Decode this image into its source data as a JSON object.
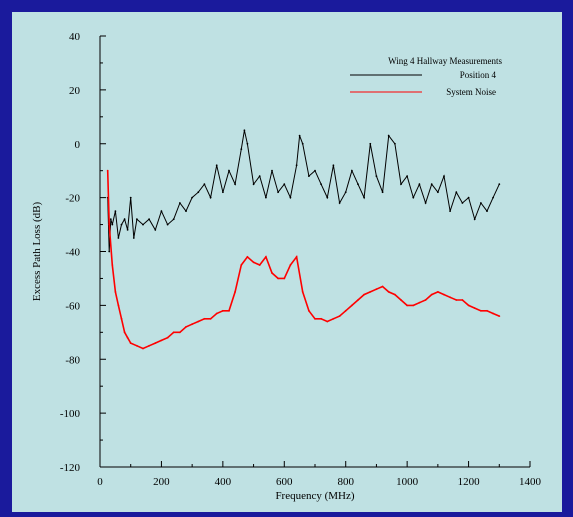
{
  "chart_data": {
    "type": "line",
    "title": "",
    "xlabel": "Frequency (MHz)",
    "ylabel": "Excess Path Loss (dB)",
    "xlim": [
      0,
      1400
    ],
    "ylim": [
      -120,
      40
    ],
    "xticks": [
      0,
      200,
      400,
      600,
      800,
      1000,
      1200,
      1400
    ],
    "yticks": [
      40,
      20,
      0,
      -20,
      -40,
      -60,
      -80,
      -100,
      -120
    ],
    "grid": false,
    "legend": {
      "title": "Wing 4 Hallway Measurements",
      "placement": "top-right"
    },
    "series": [
      {
        "name": "Position 4",
        "color": "#000000",
        "x": [
          25,
          30,
          35,
          40,
          50,
          60,
          70,
          80,
          90,
          100,
          110,
          120,
          140,
          160,
          180,
          200,
          220,
          240,
          260,
          280,
          300,
          320,
          340,
          360,
          380,
          400,
          420,
          440,
          460,
          470,
          480,
          500,
          520,
          540,
          560,
          580,
          600,
          620,
          640,
          650,
          660,
          680,
          700,
          720,
          740,
          760,
          780,
          800,
          820,
          840,
          860,
          880,
          900,
          920,
          940,
          960,
          980,
          1000,
          1020,
          1040,
          1060,
          1080,
          1100,
          1120,
          1140,
          1160,
          1180,
          1200,
          1220,
          1240,
          1260,
          1280,
          1300
        ],
        "y": [
          -20,
          -40,
          -28,
          -30,
          -25,
          -35,
          -30,
          -28,
          -32,
          -20,
          -35,
          -28,
          -30,
          -28,
          -32,
          -25,
          -30,
          -28,
          -22,
          -25,
          -20,
          -18,
          -15,
          -20,
          -8,
          -18,
          -10,
          -15,
          -2,
          5,
          0,
          -15,
          -12,
          -20,
          -10,
          -18,
          -15,
          -20,
          -8,
          3,
          0,
          -12,
          -10,
          -15,
          -20,
          -8,
          -22,
          -18,
          -10,
          -15,
          -20,
          0,
          -12,
          -18,
          3,
          0,
          -15,
          -12,
          -20,
          -15,
          -22,
          -15,
          -18,
          -12,
          -25,
          -18,
          -22,
          -20,
          -28,
          -22,
          -25,
          -20,
          -15
        ]
      },
      {
        "name": "System Noise",
        "color": "#ff0000",
        "x": [
          25,
          30,
          40,
          50,
          60,
          70,
          80,
          90,
          100,
          120,
          140,
          160,
          180,
          200,
          220,
          240,
          260,
          280,
          300,
          320,
          340,
          360,
          380,
          400,
          420,
          440,
          460,
          480,
          500,
          520,
          540,
          560,
          580,
          600,
          620,
          640,
          660,
          680,
          700,
          720,
          740,
          760,
          780,
          800,
          820,
          840,
          860,
          880,
          900,
          920,
          940,
          960,
          980,
          1000,
          1020,
          1040,
          1060,
          1080,
          1100,
          1120,
          1140,
          1160,
          1180,
          1200,
          1220,
          1240,
          1260,
          1280,
          1300
        ],
        "y": [
          -10,
          -30,
          -45,
          -55,
          -60,
          -65,
          -70,
          -72,
          -74,
          -75,
          -76,
          -75,
          -74,
          -73,
          -72,
          -70,
          -70,
          -68,
          -67,
          -66,
          -65,
          -65,
          -63,
          -62,
          -62,
          -55,
          -45,
          -42,
          -44,
          -45,
          -42,
          -48,
          -50,
          -50,
          -45,
          -42,
          -55,
          -62,
          -65,
          -65,
          -66,
          -65,
          -64,
          -62,
          -60,
          -58,
          -56,
          -55,
          -54,
          -53,
          -55,
          -56,
          -58,
          -60,
          -60,
          -59,
          -58,
          -56,
          -55,
          -56,
          -57,
          -58,
          -58,
          -60,
          -61,
          -62,
          -62,
          -63,
          -64
        ]
      }
    ]
  }
}
